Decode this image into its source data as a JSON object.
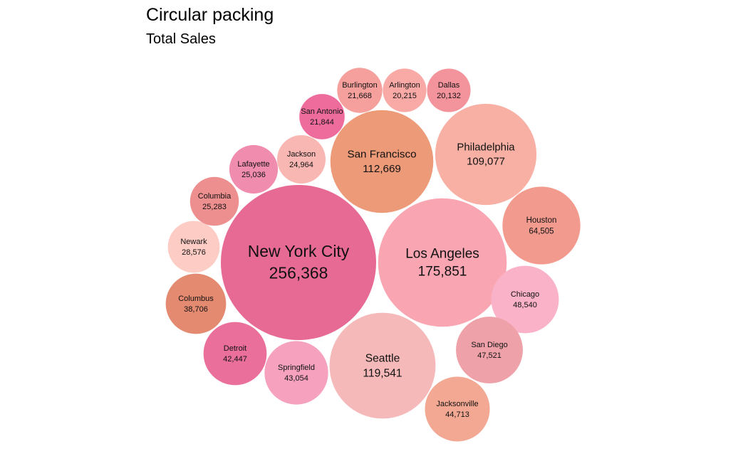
{
  "chart_data": {
    "type": "packed-bubble",
    "title": "Circular packing",
    "subtitle": "Total Sales",
    "items": [
      {
        "name": "New York City",
        "value": 256368,
        "label": "256,368",
        "color": "#e76a95"
      },
      {
        "name": "Los Angeles",
        "value": 175851,
        "label": "175,851",
        "color": "#f9a5b2"
      },
      {
        "name": "Seattle",
        "value": 119541,
        "label": "119,541",
        "color": "#f6b9b9"
      },
      {
        "name": "San Francisco",
        "value": 112669,
        "label": "112,669",
        "color": "#ed9a78"
      },
      {
        "name": "Philadelphia",
        "value": 109077,
        "label": "109,077",
        "color": "#f8b0a4"
      },
      {
        "name": "Houston",
        "value": 64505,
        "label": "64,505",
        "color": "#f39a8f"
      },
      {
        "name": "Chicago",
        "value": 48540,
        "label": "48,540",
        "color": "#f9b2c7"
      },
      {
        "name": "San Diego",
        "value": 47521,
        "label": "47,521",
        "color": "#eea1a8"
      },
      {
        "name": "Jacksonville",
        "value": 44713,
        "label": "44,713",
        "color": "#f2a893"
      },
      {
        "name": "Springfield",
        "value": 43054,
        "label": "43,054",
        "color": "#f6a2be"
      },
      {
        "name": "Detroit",
        "value": 42447,
        "label": "42,447",
        "color": "#ea6f9b"
      },
      {
        "name": "Columbus",
        "value": 38706,
        "label": "38,706",
        "color": "#e38a70"
      },
      {
        "name": "Newark",
        "value": 28576,
        "label": "28,576",
        "color": "#fcccc5"
      },
      {
        "name": "Columbia",
        "value": 25283,
        "label": "25,283",
        "color": "#ee8f8f"
      },
      {
        "name": "Lafayette",
        "value": 25036,
        "label": "25,036",
        "color": "#f08cad"
      },
      {
        "name": "Jackson",
        "value": 24964,
        "label": "24,964",
        "color": "#f9b7b3"
      },
      {
        "name": "San Antonio",
        "value": 21844,
        "label": "21,844",
        "color": "#ee6c9c"
      },
      {
        "name": "Burlington",
        "value": 21668,
        "label": "21,668",
        "color": "#f5a09c"
      },
      {
        "name": "Arlington",
        "value": 20215,
        "label": "20,215",
        "color": "#f9aaa6"
      },
      {
        "name": "Dallas",
        "value": 20132,
        "label": "20,132",
        "color": "#f3939b"
      }
    ]
  }
}
